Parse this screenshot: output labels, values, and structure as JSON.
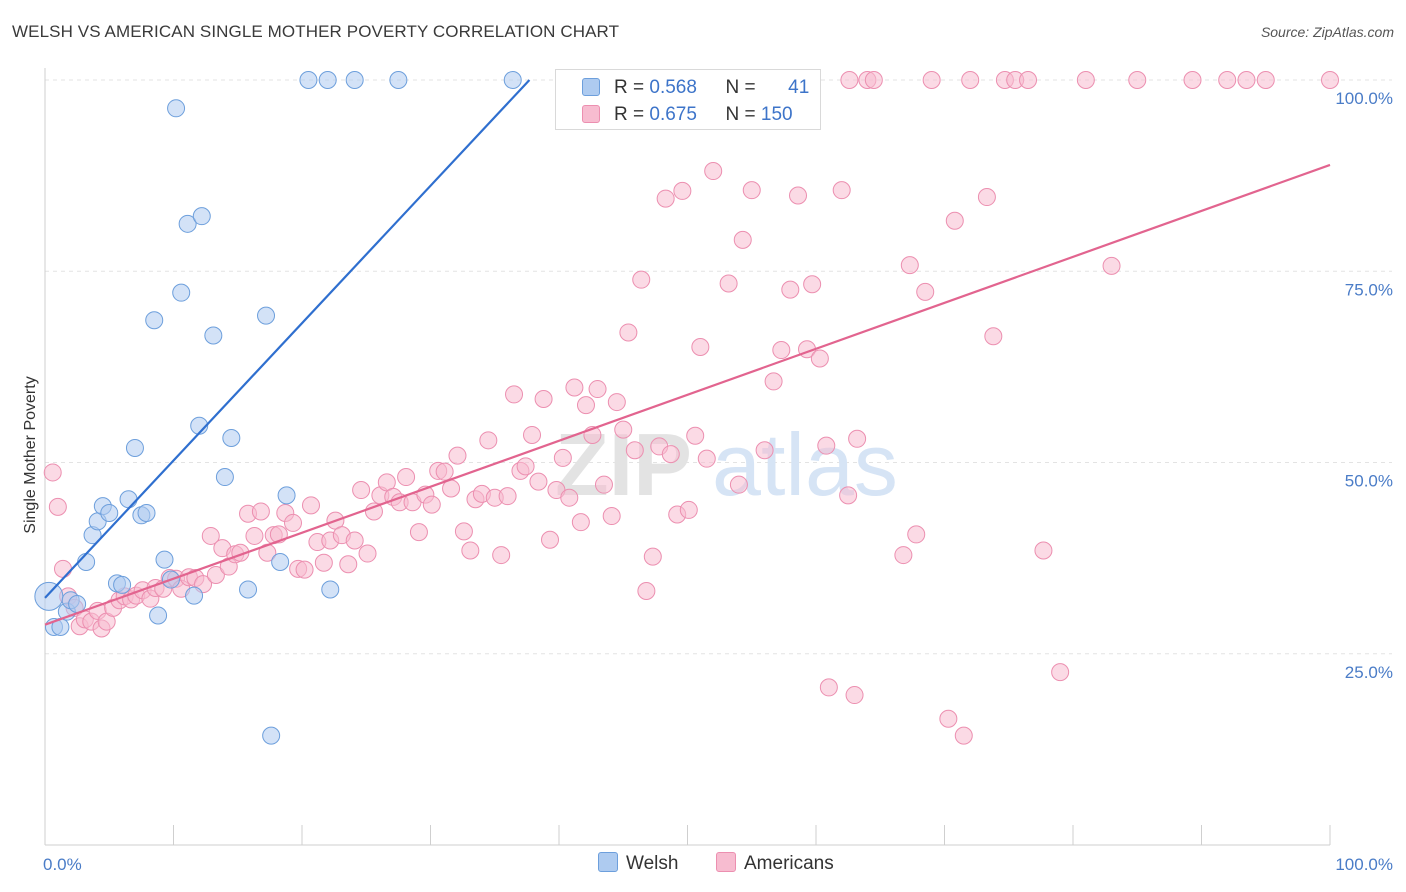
{
  "header": {
    "title": "WELSH VS AMERICAN SINGLE MOTHER POVERTY CORRELATION CHART",
    "source": "Source: ZipAtlas.com"
  },
  "legend": {
    "welsh": {
      "r_label": "R =",
      "r_value": "0.568",
      "n_label": "N =",
      "n_value": "41"
    },
    "americans": {
      "r_label": "R =",
      "r_value": "0.675",
      "n_label": "N =",
      "n_value": "150"
    }
  },
  "bottom_legend": {
    "welsh": "Welsh",
    "americans": "Americans"
  },
  "watermark": {
    "zip": "ZIP",
    "atlas": "atlas"
  },
  "colors": {
    "welsh_fill": "#aecbf0",
    "welsh_stroke": "#6d9fdc",
    "welsh_line": "#2f6fcf",
    "americans_fill": "#f7bcd0",
    "americans_stroke": "#ec8fb0",
    "americans_line": "#e2648f",
    "axis_text": "#4a7cc7"
  },
  "chart_data": {
    "type": "scatter",
    "title": "WELSH VS AMERICAN SINGLE MOTHER POVERTY CORRELATION CHART",
    "xlabel": "",
    "ylabel": "Single Mother Poverty",
    "xlim": [
      0,
      100
    ],
    "ylim": [
      0,
      100
    ],
    "x_tick_labels": [
      "0.0%",
      "100.0%"
    ],
    "y_ticks": [
      25,
      50,
      75,
      100
    ],
    "y_tick_labels": [
      "25.0%",
      "50.0%",
      "75.0%",
      "100.0%"
    ],
    "grid": true,
    "legend_position": "top-center",
    "series": [
      {
        "name": "Welsh",
        "r": 0.568,
        "n": 41,
        "trend": {
          "x": [
            0,
            37.7
          ],
          "y": [
            32.3,
            100
          ]
        },
        "points": [
          [
            0.3,
            32.5
          ],
          [
            0.7,
            28.5
          ],
          [
            1.2,
            28.5
          ],
          [
            1.7,
            30.5
          ],
          [
            2.0,
            32.0
          ],
          [
            2.5,
            31.5
          ],
          [
            3.2,
            37.0
          ],
          [
            3.7,
            40.5
          ],
          [
            4.1,
            42.3
          ],
          [
            4.5,
            44.3
          ],
          [
            5.0,
            43.4
          ],
          [
            5.6,
            34.2
          ],
          [
            6.0,
            34.0
          ],
          [
            6.5,
            45.2
          ],
          [
            7.0,
            51.9
          ],
          [
            7.5,
            43.1
          ],
          [
            7.9,
            43.4
          ],
          [
            8.5,
            68.6
          ],
          [
            8.8,
            30.0
          ],
          [
            9.3,
            37.3
          ],
          [
            9.8,
            34.7
          ],
          [
            10.2,
            96.3
          ],
          [
            10.6,
            72.2
          ],
          [
            11.1,
            81.2
          ],
          [
            11.6,
            32.6
          ],
          [
            12.0,
            54.8
          ],
          [
            12.2,
            82.2
          ],
          [
            13.1,
            66.6
          ],
          [
            14.0,
            48.1
          ],
          [
            14.5,
            53.2
          ],
          [
            15.8,
            33.4
          ],
          [
            17.2,
            69.2
          ],
          [
            17.6,
            14.3
          ],
          [
            18.3,
            37.0
          ],
          [
            18.8,
            45.7
          ],
          [
            22.2,
            33.4
          ],
          [
            20.5,
            100
          ],
          [
            27.5,
            100
          ],
          [
            22.0,
            100
          ],
          [
            24.1,
            100
          ],
          [
            36.4,
            100
          ]
        ]
      },
      {
        "name": "Americans",
        "r": 0.675,
        "n": 150,
        "trend": {
          "x": [
            0,
            100
          ],
          "y": [
            28.8,
            88.9
          ]
        },
        "points": [
          [
            0.6,
            48.7
          ],
          [
            1.0,
            44.2
          ],
          [
            1.4,
            36.1
          ],
          [
            1.8,
            32.5
          ],
          [
            2.3,
            31.0
          ],
          [
            2.7,
            28.6
          ],
          [
            3.1,
            29.5
          ],
          [
            3.6,
            29.2
          ],
          [
            4.1,
            30.6
          ],
          [
            4.4,
            28.3
          ],
          [
            4.8,
            29.2
          ],
          [
            5.3,
            31.0
          ],
          [
            5.8,
            32.0
          ],
          [
            6.2,
            32.5
          ],
          [
            6.7,
            32.1
          ],
          [
            7.1,
            32.6
          ],
          [
            7.6,
            33.3
          ],
          [
            8.2,
            32.2
          ],
          [
            8.6,
            33.6
          ],
          [
            9.2,
            33.5
          ],
          [
            9.7,
            34.9
          ],
          [
            10.2,
            34.8
          ],
          [
            10.6,
            33.5
          ],
          [
            11.2,
            35.0
          ],
          [
            11.7,
            34.9
          ],
          [
            12.3,
            34.1
          ],
          [
            12.9,
            40.4
          ],
          [
            13.3,
            35.3
          ],
          [
            13.8,
            38.8
          ],
          [
            14.3,
            36.4
          ],
          [
            14.8,
            38.0
          ],
          [
            15.2,
            38.2
          ],
          [
            15.8,
            43.3
          ],
          [
            16.3,
            40.4
          ],
          [
            16.8,
            43.6
          ],
          [
            17.3,
            38.2
          ],
          [
            17.8,
            40.5
          ],
          [
            18.2,
            40.6
          ],
          [
            18.7,
            43.4
          ],
          [
            19.3,
            42.1
          ],
          [
            19.7,
            36.1
          ],
          [
            20.2,
            36.0
          ],
          [
            20.7,
            44.4
          ],
          [
            21.2,
            39.6
          ],
          [
            21.7,
            36.9
          ],
          [
            22.2,
            39.8
          ],
          [
            22.6,
            42.4
          ],
          [
            23.1,
            40.5
          ],
          [
            23.6,
            36.7
          ],
          [
            24.1,
            39.8
          ],
          [
            24.6,
            46.4
          ],
          [
            25.1,
            38.1
          ],
          [
            25.6,
            43.6
          ],
          [
            26.1,
            45.7
          ],
          [
            26.6,
            47.4
          ],
          [
            27.1,
            45.5
          ],
          [
            27.6,
            44.8
          ],
          [
            28.1,
            48.1
          ],
          [
            28.6,
            44.8
          ],
          [
            29.1,
            40.9
          ],
          [
            29.6,
            45.8
          ],
          [
            30.1,
            44.5
          ],
          [
            30.6,
            48.9
          ],
          [
            31.1,
            48.8
          ],
          [
            31.6,
            46.6
          ],
          [
            32.1,
            50.9
          ],
          [
            32.6,
            41.0
          ],
          [
            33.1,
            38.5
          ],
          [
            33.5,
            45.2
          ],
          [
            34.0,
            45.9
          ],
          [
            34.5,
            52.9
          ],
          [
            35.0,
            45.4
          ],
          [
            35.5,
            37.9
          ],
          [
            36.0,
            45.6
          ],
          [
            36.5,
            58.9
          ],
          [
            37.0,
            48.9
          ],
          [
            37.4,
            49.5
          ],
          [
            37.9,
            53.6
          ],
          [
            38.4,
            47.5
          ],
          [
            38.8,
            58.3
          ],
          [
            39.3,
            39.9
          ],
          [
            39.8,
            46.4
          ],
          [
            40.3,
            50.6
          ],
          [
            40.8,
            45.4
          ],
          [
            41.2,
            59.8
          ],
          [
            41.7,
            42.2
          ],
          [
            42.1,
            57.5
          ],
          [
            42.6,
            53.6
          ],
          [
            43.0,
            59.6
          ],
          [
            43.5,
            47.1
          ],
          [
            44.1,
            43.0
          ],
          [
            44.5,
            57.9
          ],
          [
            45.0,
            54.3
          ],
          [
            45.4,
            67.0
          ],
          [
            45.9,
            51.6
          ],
          [
            46.4,
            73.9
          ],
          [
            46.8,
            33.2
          ],
          [
            47.3,
            37.7
          ],
          [
            47.8,
            52.1
          ],
          [
            48.3,
            84.5
          ],
          [
            48.7,
            51.1
          ],
          [
            49.2,
            43.2
          ],
          [
            49.6,
            85.5
          ],
          [
            50.1,
            43.8
          ],
          [
            50.6,
            53.5
          ],
          [
            51.0,
            65.1
          ],
          [
            51.5,
            50.5
          ],
          [
            52.0,
            88.1
          ],
          [
            53.2,
            73.4
          ],
          [
            54.0,
            47.1
          ],
          [
            54.3,
            79.1
          ],
          [
            55.0,
            85.6
          ],
          [
            56.0,
            51.6
          ],
          [
            56.7,
            60.6
          ],
          [
            57.3,
            64.7
          ],
          [
            58.0,
            72.6
          ],
          [
            58.6,
            84.9
          ],
          [
            59.3,
            64.8
          ],
          [
            59.7,
            73.3
          ],
          [
            60.3,
            63.6
          ],
          [
            60.8,
            52.2
          ],
          [
            62.0,
            85.6
          ],
          [
            62.5,
            45.7
          ],
          [
            63.2,
            53.1
          ],
          [
            61.0,
            20.6
          ],
          [
            63.0,
            19.6
          ],
          [
            64.0,
            100
          ],
          [
            64.5,
            100
          ],
          [
            66.8,
            37.9
          ],
          [
            67.3,
            75.8
          ],
          [
            67.8,
            40.6
          ],
          [
            68.5,
            72.3
          ],
          [
            69.0,
            100
          ],
          [
            70.3,
            16.5
          ],
          [
            70.8,
            81.6
          ],
          [
            71.5,
            14.3
          ],
          [
            72.0,
            100
          ],
          [
            73.3,
            84.7
          ],
          [
            73.8,
            66.5
          ],
          [
            74.7,
            100
          ],
          [
            75.5,
            100
          ],
          [
            76.5,
            100
          ],
          [
            77.7,
            38.5
          ],
          [
            79.0,
            22.6
          ],
          [
            81.0,
            100
          ],
          [
            83.0,
            75.7
          ],
          [
            85.0,
            100
          ],
          [
            89.3,
            100
          ],
          [
            92.0,
            100
          ],
          [
            93.5,
            100
          ],
          [
            95.0,
            100
          ],
          [
            100.0,
            100
          ],
          [
            53.3,
            100
          ],
          [
            56.9,
            100
          ],
          [
            58.5,
            100
          ],
          [
            62.6,
            100
          ]
        ]
      }
    ]
  }
}
